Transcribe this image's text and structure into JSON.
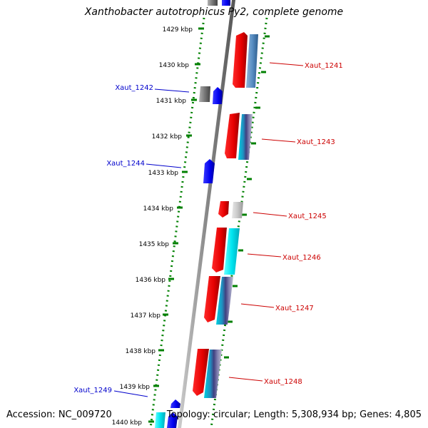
{
  "title": "Xanthobacter autotrophicus Py2, complete genome",
  "accession": "Accession: NC_009720",
  "topology": "Topology: circular; Length: 5,308,934 bp; Genes: 4,805",
  "kbp_labels": [
    "1429 kbp",
    "1430 kbp",
    "1431 kbp",
    "1432 kbp",
    "1433 kbp",
    "1434 kbp",
    "1435 kbp",
    "1436 kbp",
    "1437 kbp",
    "1438 kbp",
    "1439 kbp",
    "1440 kbp"
  ],
  "gene_labels": {
    "Xaut_1241": "Xaut_1241",
    "Xaut_1242": "Xaut_1242",
    "Xaut_1243": "Xaut_1243",
    "Xaut_1244": "Xaut_1244",
    "Xaut_1245": "Xaut_1245",
    "Xaut_1246": "Xaut_1246",
    "Xaut_1247": "Xaut_1247",
    "Xaut_1248": "Xaut_1248",
    "Xaut_1249": "Xaut_1249"
  },
  "colors": {
    "forward_strand_label": "#cc0000",
    "reverse_strand_label": "#0000cc",
    "tick_green": "#008000",
    "backbone": "#888888"
  }
}
